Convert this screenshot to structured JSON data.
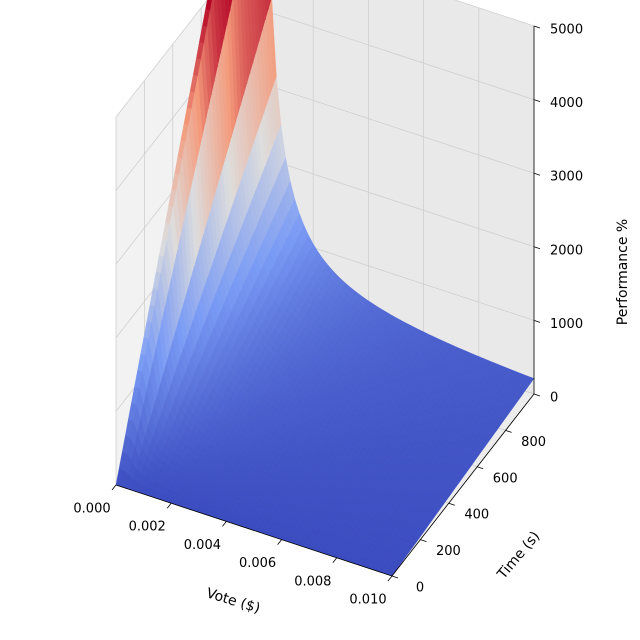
{
  "chart_data": {
    "type": "surface3d",
    "title": "",
    "xlabel": "Vote ($)",
    "ylabel": "Time (s)",
    "zlabel": "Performance %",
    "xlim": [
      0,
      0.01
    ],
    "ylim": [
      0,
      1000
    ],
    "zlim": [
      0,
      5000
    ],
    "x_ticks": [
      0.0,
      0.002,
      0.004,
      0.006,
      0.008,
      0.01
    ],
    "x_tick_labels": [
      "0.000",
      "0.002",
      "0.004",
      "0.006",
      "0.008",
      "0.010"
    ],
    "y_ticks": [
      0,
      200,
      400,
      600,
      800
    ],
    "y_tick_labels": [
      "0",
      "200",
      "400",
      "600",
      "800"
    ],
    "z_ticks": [
      0,
      1000,
      2000,
      3000,
      4000,
      5000
    ],
    "z_tick_labels": [
      "0",
      "1000",
      "2000",
      "3000",
      "4000",
      "5000"
    ],
    "colormap": "coolwarm",
    "colors": {
      "low": "#3b4cc0",
      "mid": "#dddddd",
      "high": "#b40426",
      "pane": "#f2f2f2",
      "grid": "#cfcfcf"
    },
    "grid": true,
    "surface_peak": {
      "vote": 0.0003,
      "time": 1000,
      "performance": 5100
    },
    "surface_floor": {
      "performance": 0
    }
  }
}
